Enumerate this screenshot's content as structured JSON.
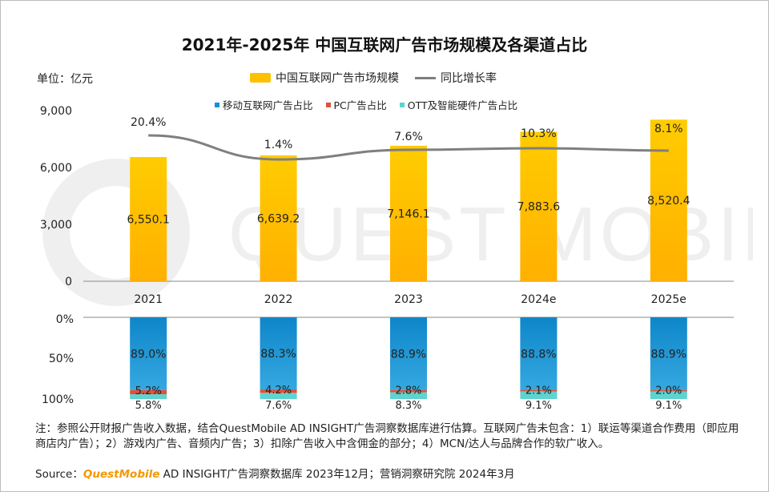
{
  "title": "2021年-2025年 中国互联网广告市场规模及各渠道占比",
  "unit": "单位：亿元",
  "legend_top": {
    "bar": "中国互联网广告市场规模",
    "line": "同比增长率"
  },
  "legend_bottom": [
    {
      "label": "移动互联网广告占比",
      "color": "#1a8fd1"
    },
    {
      "label": "PC广告占比",
      "color": "#e0523a"
    },
    {
      "label": "OTT及智能硬件广告占比",
      "color": "#5fd3cf"
    }
  ],
  "colors": {
    "bar": "#ffc000",
    "line": "#7f7f7f",
    "watermark": "#efefef"
  },
  "watermark_text": "QUEST MOBILE",
  "chart_data": [
    {
      "type": "bar",
      "categories": [
        "2021",
        "2022",
        "2023",
        "2024e",
        "2025e"
      ],
      "series": [
        {
          "name": "中国互联网广告市场规模",
          "values": [
            6550.1,
            6639.2,
            7146.1,
            7883.6,
            8520.4
          ],
          "labels": [
            "6,550.1",
            "6,639.2",
            "7,146.1",
            "7,883.6",
            "8,520.4"
          ]
        },
        {
          "name": "同比增长率",
          "type": "line",
          "values": [
            20.4,
            1.4,
            7.6,
            10.3,
            8.1
          ],
          "labels": [
            "20.4%",
            "1.4%",
            "7.6%",
            "10.3%",
            "8.1%"
          ]
        }
      ],
      "yticks": [
        "0",
        "3,000",
        "6,000",
        "9,000"
      ],
      "ylim": [
        0,
        9000
      ]
    },
    {
      "type": "bar",
      "stacked": true,
      "categories": [
        "2021",
        "2022",
        "2023",
        "2024e",
        "2025e"
      ],
      "series": [
        {
          "name": "移动互联网广告占比",
          "values": [
            89.0,
            88.3,
            88.9,
            88.8,
            88.9
          ],
          "labels": [
            "89.0%",
            "88.3%",
            "88.9%",
            "88.8%",
            "88.9%"
          ]
        },
        {
          "name": "PC广告占比",
          "values": [
            5.2,
            4.2,
            2.8,
            2.1,
            2.0
          ],
          "labels": [
            "5.2%",
            "4.2%",
            "2.8%",
            "2.1%",
            "2.0%"
          ]
        },
        {
          "name": "OTT及智能硬件广告占比",
          "values": [
            5.8,
            7.6,
            8.3,
            9.1,
            9.1
          ],
          "labels": [
            "5.8%",
            "7.6%",
            "8.3%",
            "9.1%",
            "9.1%"
          ]
        }
      ],
      "yticks": [
        "0%",
        "50%",
        "100%"
      ],
      "ylim": [
        0,
        100
      ]
    }
  ],
  "note": "注：参照公开财报广告收入数据，结合QuestMobile AD INSIGHT广告洞察数据库进行估算。互联网广告未包含：1）联运等渠道合作费用（即应用商店内广告）；2）游戏内广告、音频内广告；3）扣除广告收入中含佣金的部分；4）MCN/达人与品牌合作的软广收入。",
  "source": {
    "prefix": "Source：",
    "brand": "QuestMobile",
    "suffix": " AD INSIGHT广告洞察数据库 2023年12月；营销洞察研究院 2024年3月"
  }
}
